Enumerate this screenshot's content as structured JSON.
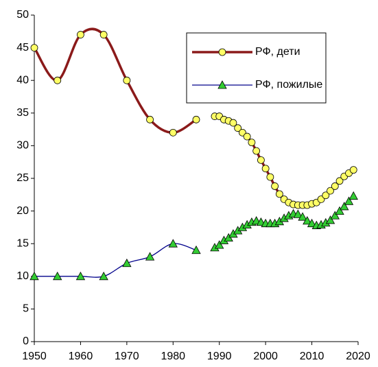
{
  "chart_data": {
    "type": "line",
    "x": [
      1950,
      1955,
      1960,
      1965,
      1970,
      1975,
      1980,
      1985,
      1988,
      1989,
      1990,
      1991,
      1992,
      1993,
      1994,
      1995,
      1996,
      1997,
      1998,
      1999,
      2000,
      2001,
      2002,
      2003,
      2004,
      2005,
      2006,
      2007,
      2008,
      2009,
      2010,
      2011,
      2012,
      2013,
      2014,
      2015,
      2016,
      2017,
      2018,
      2019
    ],
    "series": [
      {
        "name": "РФ, дети",
        "color": "#8b1a1a",
        "marker_color": "#ffff66",
        "marker": "circle",
        "values": [
          45,
          40,
          47,
          47,
          40,
          34,
          32,
          34,
          null,
          34.5,
          34.5,
          34.0,
          33.8,
          33.5,
          32.7,
          32.0,
          31.4,
          30.5,
          29.2,
          27.8,
          26.5,
          25.2,
          23.8,
          22.6,
          21.8,
          21.3,
          21.0,
          20.9,
          20.9,
          20.9,
          21.1,
          21.3,
          21.8,
          22.4,
          23.1,
          23.8,
          24.6,
          25.3,
          25.8,
          26.3
        ]
      },
      {
        "name": "РФ, пожилые",
        "color": "#00008b",
        "marker_color": "#33cc33",
        "marker": "triangle",
        "values": [
          10,
          10,
          10,
          10,
          12,
          13,
          15,
          14,
          null,
          14.4,
          14.8,
          15.5,
          15.9,
          16.5,
          17.0,
          17.5,
          17.9,
          18.3,
          18.5,
          18.3,
          18.1,
          18.1,
          18.1,
          18.4,
          18.9,
          19.3,
          19.6,
          19.5,
          19.1,
          18.5,
          18.1,
          17.8,
          17.9,
          18.2,
          18.6,
          19.3,
          20.0,
          20.7,
          21.5,
          22.3
        ]
      }
    ],
    "xlim": [
      1950,
      2020
    ],
    "xticks": [
      1950,
      1960,
      1970,
      1980,
      1990,
      2000,
      2010,
      2020
    ],
    "ylim": [
      0,
      50
    ],
    "yticks": [
      0,
      5,
      10,
      15,
      20,
      25,
      30,
      35,
      40,
      45,
      50
    ],
    "smooth": true,
    "grid": false,
    "legend": "upper right"
  }
}
